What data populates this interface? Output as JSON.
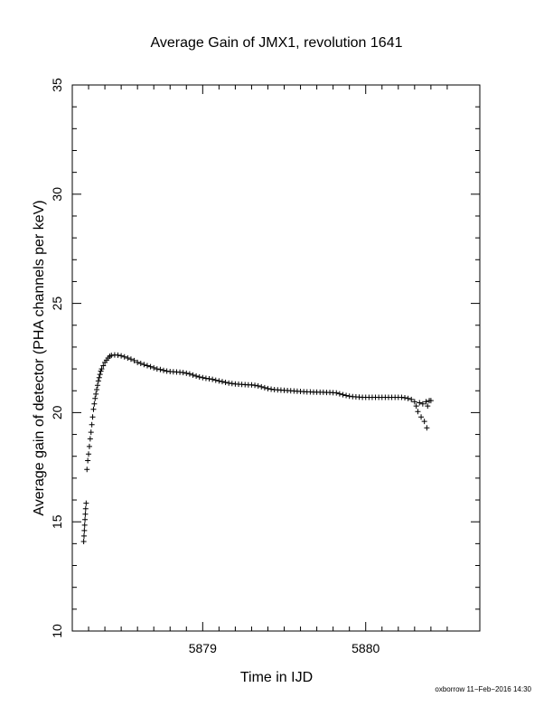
{
  "chart_data": {
    "type": "scatter",
    "title": "Average Gain of JMX1, revolution 1641",
    "xlabel": "Time in IJD",
    "ylabel": "Average gain of detector (PHA channels per keV)",
    "xlim": [
      5878.2,
      5880.7
    ],
    "ylim": [
      10,
      35
    ],
    "xticks": [
      5879,
      5880
    ],
    "yticks": [
      10,
      15,
      20,
      25,
      30,
      35
    ],
    "grid": false,
    "marker": "+",
    "series": [
      {
        "points": [
          [
            5878.27,
            14.1
          ],
          [
            5878.272,
            14.35
          ],
          [
            5878.274,
            14.6
          ],
          [
            5878.276,
            14.85
          ],
          [
            5878.278,
            15.1
          ],
          [
            5878.28,
            15.35
          ],
          [
            5878.282,
            15.6
          ],
          [
            5878.285,
            15.85
          ],
          [
            5878.29,
            17.4
          ],
          [
            5878.295,
            17.8
          ],
          [
            5878.3,
            18.1
          ],
          [
            5878.305,
            18.45
          ],
          [
            5878.31,
            18.8
          ],
          [
            5878.315,
            19.1
          ],
          [
            5878.32,
            19.45
          ],
          [
            5878.325,
            19.8
          ],
          [
            5878.33,
            20.15
          ],
          [
            5878.335,
            20.4
          ],
          [
            5878.34,
            20.65
          ],
          [
            5878.345,
            20.85
          ],
          [
            5878.35,
            21.05
          ],
          [
            5878.355,
            21.25
          ],
          [
            5878.36,
            21.45
          ],
          [
            5878.365,
            21.6
          ],
          [
            5878.37,
            21.75
          ],
          [
            5878.375,
            21.9
          ],
          [
            5878.38,
            22.0
          ],
          [
            5878.39,
            22.15
          ],
          [
            5878.4,
            22.3
          ],
          [
            5878.41,
            22.4
          ],
          [
            5878.42,
            22.5
          ],
          [
            5878.43,
            22.58
          ],
          [
            5878.44,
            22.62
          ],
          [
            5878.46,
            22.64
          ],
          [
            5878.48,
            22.63
          ],
          [
            5878.5,
            22.6
          ],
          [
            5878.52,
            22.55
          ],
          [
            5878.54,
            22.5
          ],
          [
            5878.56,
            22.45
          ],
          [
            5878.58,
            22.38
          ],
          [
            5878.6,
            22.3
          ],
          [
            5878.62,
            22.25
          ],
          [
            5878.64,
            22.2
          ],
          [
            5878.66,
            22.15
          ],
          [
            5878.68,
            22.1
          ],
          [
            5878.7,
            22.05
          ],
          [
            5878.72,
            22.0
          ],
          [
            5878.74,
            21.97
          ],
          [
            5878.76,
            21.93
          ],
          [
            5878.78,
            21.9
          ],
          [
            5878.8,
            21.88
          ],
          [
            5878.82,
            21.87
          ],
          [
            5878.84,
            21.86
          ],
          [
            5878.86,
            21.85
          ],
          [
            5878.88,
            21.83
          ],
          [
            5878.9,
            21.8
          ],
          [
            5878.92,
            21.77
          ],
          [
            5878.94,
            21.72
          ],
          [
            5878.96,
            21.67
          ],
          [
            5878.98,
            21.63
          ],
          [
            5879.0,
            21.6
          ],
          [
            5879.02,
            21.57
          ],
          [
            5879.04,
            21.55
          ],
          [
            5879.06,
            21.52
          ],
          [
            5879.08,
            21.48
          ],
          [
            5879.1,
            21.45
          ],
          [
            5879.12,
            21.42
          ],
          [
            5879.14,
            21.38
          ],
          [
            5879.16,
            21.35
          ],
          [
            5879.18,
            21.33
          ],
          [
            5879.2,
            21.31
          ],
          [
            5879.22,
            21.3
          ],
          [
            5879.24,
            21.29
          ],
          [
            5879.26,
            21.28
          ],
          [
            5879.28,
            21.27
          ],
          [
            5879.3,
            21.27
          ],
          [
            5879.32,
            21.25
          ],
          [
            5879.34,
            21.22
          ],
          [
            5879.36,
            21.18
          ],
          [
            5879.38,
            21.14
          ],
          [
            5879.4,
            21.1
          ],
          [
            5879.42,
            21.07
          ],
          [
            5879.44,
            21.05
          ],
          [
            5879.46,
            21.04
          ],
          [
            5879.48,
            21.03
          ],
          [
            5879.5,
            21.02
          ],
          [
            5879.52,
            21.01
          ],
          [
            5879.54,
            21.0
          ],
          [
            5879.56,
            20.99
          ],
          [
            5879.58,
            20.98
          ],
          [
            5879.6,
            20.97
          ],
          [
            5879.62,
            20.96
          ],
          [
            5879.64,
            20.95
          ],
          [
            5879.66,
            20.95
          ],
          [
            5879.68,
            20.94
          ],
          [
            5879.7,
            20.94
          ],
          [
            5879.72,
            20.93
          ],
          [
            5879.74,
            20.93
          ],
          [
            5879.76,
            20.92
          ],
          [
            5879.78,
            20.92
          ],
          [
            5879.8,
            20.91
          ],
          [
            5879.82,
            20.9
          ],
          [
            5879.84,
            20.86
          ],
          [
            5879.86,
            20.82
          ],
          [
            5879.88,
            20.78
          ],
          [
            5879.9,
            20.75
          ],
          [
            5879.92,
            20.73
          ],
          [
            5879.94,
            20.72
          ],
          [
            5879.96,
            20.71
          ],
          [
            5879.98,
            20.7
          ],
          [
            5880.0,
            20.7
          ],
          [
            5880.02,
            20.7
          ],
          [
            5880.04,
            20.7
          ],
          [
            5880.06,
            20.7
          ],
          [
            5880.08,
            20.7
          ],
          [
            5880.1,
            20.7
          ],
          [
            5880.12,
            20.7
          ],
          [
            5880.14,
            20.7
          ],
          [
            5880.16,
            20.7
          ],
          [
            5880.18,
            20.7
          ],
          [
            5880.2,
            20.7
          ],
          [
            5880.22,
            20.7
          ],
          [
            5880.24,
            20.68
          ],
          [
            5880.26,
            20.65
          ],
          [
            5880.28,
            20.6
          ],
          [
            5880.3,
            20.5
          ],
          [
            5880.31,
            20.3
          ],
          [
            5880.32,
            20.05
          ],
          [
            5880.33,
            20.45
          ],
          [
            5880.34,
            19.8
          ],
          [
            5880.35,
            20.4
          ],
          [
            5880.36,
            19.6
          ],
          [
            5880.37,
            20.5
          ],
          [
            5880.375,
            19.3
          ],
          [
            5880.38,
            20.3
          ],
          [
            5880.39,
            20.55
          ],
          [
            5880.4,
            20.55
          ]
        ]
      }
    ]
  },
  "footer": {
    "credit": "oxborrow 11−Feb−2016 14:30"
  }
}
